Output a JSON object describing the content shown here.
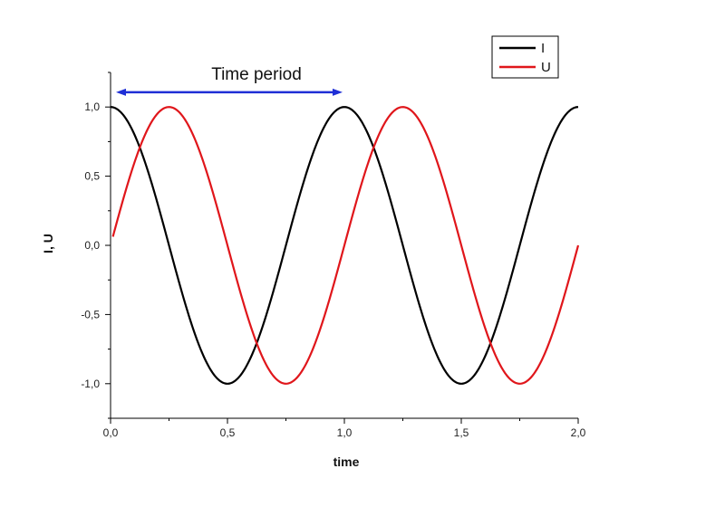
{
  "chart_data": {
    "type": "line",
    "xlabel": "time",
    "ylabel": "I, U",
    "xlim": [
      0,
      2
    ],
    "ylim": [
      -1.25,
      1.25
    ],
    "x_ticks": [
      0,
      0.5,
      1,
      1.5,
      2
    ],
    "x_tick_labels": [
      "0,0",
      "0,5",
      "1,0",
      "1,5",
      "2,0"
    ],
    "y_ticks": [
      -1,
      -0.5,
      0,
      0.5,
      1
    ],
    "y_tick_labels": [
      "-1,0",
      "-0,5",
      "0,0",
      "0,5",
      "1,0"
    ],
    "grid": false,
    "legend_position": "top-right",
    "series": [
      {
        "name": "I",
        "color": "#000000",
        "function": "cos(2*pi*t)",
        "t_range": [
          0,
          2
        ]
      },
      {
        "name": "U",
        "color": "#e0161b",
        "function": "sin(2*pi*t)",
        "t_range": [
          0.01,
          2
        ]
      }
    ],
    "annotation": {
      "text": "Time period",
      "x_start": 0,
      "x_end": 1,
      "y": 1.1,
      "color": "#1f2fd6"
    }
  }
}
